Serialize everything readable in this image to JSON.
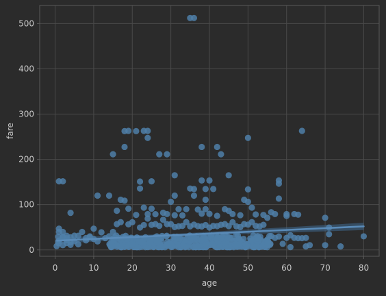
{
  "chart_data": {
    "type": "scatter",
    "title": "",
    "xlabel": "age",
    "ylabel": "fare",
    "xlim": [
      -4,
      84
    ],
    "ylim": [
      -14,
      540
    ],
    "xticks": [
      0,
      10,
      20,
      30,
      40,
      50,
      60,
      70,
      80
    ],
    "yticks": [
      0,
      100,
      200,
      300,
      400,
      500
    ],
    "grid": true,
    "legend": "none",
    "colors": {
      "background": "#2b2b2b",
      "plot_area": "#2b2b2b",
      "grid": "#4a4a4a",
      "spine": "#5a5a5a",
      "points": "#4f7fa8",
      "regression_line": "#5a8bb8",
      "confidence_band": "#3f6a8f",
      "text": "#c8c8c8"
    },
    "regression": {
      "x": [
        0.5,
        80
      ],
      "y": [
        20.5,
        52.0
      ],
      "ci_band_half_width_at_x": [
        [
          0.5,
          7
        ],
        [
          30,
          3
        ],
        [
          80,
          8
        ]
      ]
    },
    "series": [
      {
        "points": [
          [
            35,
            512.3
          ],
          [
            36,
            512.3
          ],
          [
            18,
            262.4
          ],
          [
            19,
            263.0
          ],
          [
            21,
            262.4
          ],
          [
            23,
            263.0
          ],
          [
            24,
            263.0
          ],
          [
            64,
            263.0
          ],
          [
            24,
            247.5
          ],
          [
            50,
            247.5
          ],
          [
            18,
            227.5
          ],
          [
            38,
            227.5
          ],
          [
            42,
            227.5
          ],
          [
            15,
            211.3
          ],
          [
            27,
            211.3
          ],
          [
            29,
            211.3
          ],
          [
            43,
            211.3
          ],
          [
            31,
            164.9
          ],
          [
            45,
            164.9
          ],
          [
            1,
            151.6
          ],
          [
            2,
            151.6
          ],
          [
            22,
            151.0
          ],
          [
            25,
            151.6
          ],
          [
            38,
            153.5
          ],
          [
            40,
            153.5
          ],
          [
            58,
            153.5
          ],
          [
            58,
            146.5
          ],
          [
            22,
            135.6
          ],
          [
            35,
            135.6
          ],
          [
            36,
            134.5
          ],
          [
            39,
            134.5
          ],
          [
            41,
            134.5
          ],
          [
            50,
            133.7
          ],
          [
            11,
            120.0
          ],
          [
            14,
            120.0
          ],
          [
            31,
            120.0
          ],
          [
            36,
            120.0
          ],
          [
            58,
            113.3
          ],
          [
            17,
            110.9
          ],
          [
            18,
            108.9
          ],
          [
            30,
            106.4
          ],
          [
            39,
            110.9
          ],
          [
            49,
            110.9
          ],
          [
            50,
            106.4
          ],
          [
            19,
            91.1
          ],
          [
            23,
            93.5
          ],
          [
            25,
            91.1
          ],
          [
            32,
            90.0
          ],
          [
            34,
            90.0
          ],
          [
            37,
            89.1
          ],
          [
            39,
            90.0
          ],
          [
            44,
            90.0
          ],
          [
            45,
            86.5
          ],
          [
            51,
            93.5
          ],
          [
            56,
            83.2
          ],
          [
            57,
            79.2
          ],
          [
            60,
            79.2
          ],
          [
            62,
            79.2
          ],
          [
            63,
            77.9
          ],
          [
            4,
            81.9
          ],
          [
            16,
            86.5
          ],
          [
            21,
            77.3
          ],
          [
            24,
            79.2
          ],
          [
            26,
            78.9
          ],
          [
            28,
            82.2
          ],
          [
            29,
            79.2
          ],
          [
            31,
            76.7
          ],
          [
            33,
            76.3
          ],
          [
            38,
            80.0
          ],
          [
            40,
            79.6
          ],
          [
            42,
            75.3
          ],
          [
            46,
            79.2
          ],
          [
            48,
            76.7
          ],
          [
            52,
            78.3
          ],
          [
            54,
            77.3
          ],
          [
            55,
            71.0
          ],
          [
            60,
            75.2
          ],
          [
            70,
            71.0
          ],
          [
            6,
            31.3
          ],
          [
            9,
            30.0
          ],
          [
            10,
            46.9
          ],
          [
            12,
            39.0
          ],
          [
            13,
            26.0
          ],
          [
            15,
            39.7
          ],
          [
            16,
            57.0
          ],
          [
            17,
            61.4
          ],
          [
            19,
            56.5
          ],
          [
            20,
            61.2
          ],
          [
            22,
            49.5
          ],
          [
            23,
            55.0
          ],
          [
            24,
            69.3
          ],
          [
            25,
            55.4
          ],
          [
            26,
            57.0
          ],
          [
            27,
            53.1
          ],
          [
            28,
            66.6
          ],
          [
            29,
            57.0
          ],
          [
            30,
            56.9
          ],
          [
            31,
            50.5
          ],
          [
            32,
            52.0
          ],
          [
            33,
            53.1
          ],
          [
            34,
            61.4
          ],
          [
            35,
            52.0
          ],
          [
            36,
            55.9
          ],
          [
            37,
            52.6
          ],
          [
            38,
            51.9
          ],
          [
            39,
            55.0
          ],
          [
            40,
            49.5
          ],
          [
            41,
            53.1
          ],
          [
            42,
            52.6
          ],
          [
            43,
            55.4
          ],
          [
            44,
            57.0
          ],
          [
            45,
            52.6
          ],
          [
            46,
            61.2
          ],
          [
            47,
            52.0
          ],
          [
            48,
            50.5
          ],
          [
            49,
            56.9
          ],
          [
            50,
            55.9
          ],
          [
            51,
            61.4
          ],
          [
            52,
            53.1
          ],
          [
            53,
            51.9
          ],
          [
            54,
            55.4
          ],
          [
            56,
            30.7
          ],
          [
            57,
            26.6
          ],
          [
            58,
            29.7
          ],
          [
            59,
            13.5
          ],
          [
            60,
            26.6
          ],
          [
            61,
            32.3
          ],
          [
            62,
            26.6
          ],
          [
            63,
            26.0
          ],
          [
            64,
            26.0
          ],
          [
            65,
            26.6
          ],
          [
            66,
            10.5
          ],
          [
            70,
            10.5
          ],
          [
            71,
            49.5
          ],
          [
            71,
            34.6
          ],
          [
            74,
            7.8
          ],
          [
            80,
            30.0
          ],
          [
            65,
            7.8
          ],
          [
            61,
            6.2
          ],
          [
            55,
            16.0
          ],
          [
            47,
            34.0
          ],
          [
            2,
            29.1
          ],
          [
            1,
            39.7
          ],
          [
            3,
            31.3
          ],
          [
            4,
            27.9
          ],
          [
            5,
            31.4
          ],
          [
            7,
            39.7
          ],
          [
            8,
            21.1
          ],
          [
            9,
            27.9
          ],
          [
            11,
            18.8
          ],
          [
            14,
            30.1
          ],
          [
            0.9,
            14.5
          ],
          [
            0.8,
            29.0
          ],
          [
            0.4,
            8.5
          ],
          [
            0.8,
            18.8
          ],
          [
            2,
            10.5
          ],
          [
            3,
            15.2
          ],
          [
            4,
            16.7
          ],
          [
            5,
            19.3
          ],
          [
            6,
            12.5
          ],
          [
            8,
            26.3
          ],
          [
            10,
            24.2
          ],
          [
            1,
            46.9
          ],
          [
            2,
            39.7
          ],
          [
            3,
            21.1
          ],
          [
            4,
            11.1
          ],
          [
            1,
            20.6
          ],
          [
            2,
            27.9
          ],
          [
            3,
            26.0
          ]
        ],
        "dense_cluster": {
          "x_range": [
            14,
            56
          ],
          "y_range": [
            6,
            32
          ],
          "note": "many overlapping points"
        }
      }
    ]
  }
}
